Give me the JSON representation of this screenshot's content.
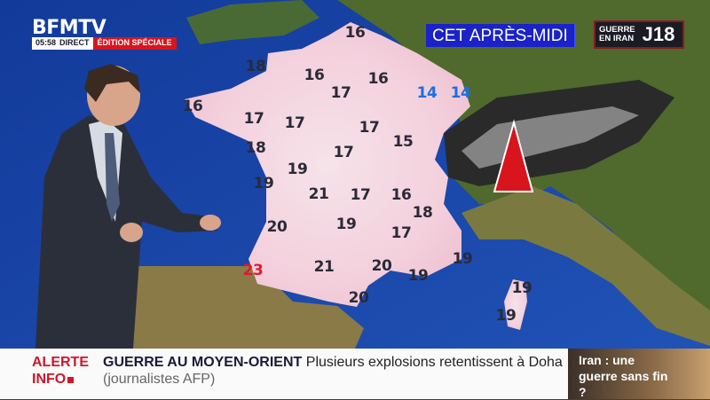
{
  "channel": {
    "logo": "BFMTV",
    "time": "05:58",
    "live": "DIRECT",
    "edition": "ÉDITION SPÉCIALE"
  },
  "weather": {
    "period": "CET APRÈS-MIDI",
    "colors": {
      "default": "#2a2a38",
      "cool": "#1a70e0",
      "hot": "#e01830",
      "land_fr": "#f3d3df",
      "sea": "#1d3f9a"
    },
    "temperatures": [
      {
        "value": "16",
        "tone": "default"
      },
      {
        "value": "18",
        "tone": "default"
      },
      {
        "value": "16",
        "tone": "default"
      },
      {
        "value": "16",
        "tone": "default"
      },
      {
        "value": "17",
        "tone": "default"
      },
      {
        "value": "14",
        "tone": "cool"
      },
      {
        "value": "14",
        "tone": "cool"
      },
      {
        "value": "16",
        "tone": "default"
      },
      {
        "value": "17",
        "tone": "default"
      },
      {
        "value": "17",
        "tone": "default"
      },
      {
        "value": "17",
        "tone": "default"
      },
      {
        "value": "15",
        "tone": "default"
      },
      {
        "value": "18",
        "tone": "default"
      },
      {
        "value": "17",
        "tone": "default"
      },
      {
        "value": "19",
        "tone": "default"
      },
      {
        "value": "19",
        "tone": "default"
      },
      {
        "value": "21",
        "tone": "default"
      },
      {
        "value": "17",
        "tone": "default"
      },
      {
        "value": "16",
        "tone": "default"
      },
      {
        "value": "18",
        "tone": "default"
      },
      {
        "value": "20",
        "tone": "default"
      },
      {
        "value": "19",
        "tone": "default"
      },
      {
        "value": "17",
        "tone": "default"
      },
      {
        "value": "19",
        "tone": "default"
      },
      {
        "value": "23",
        "tone": "hot"
      },
      {
        "value": "21",
        "tone": "default"
      },
      {
        "value": "20",
        "tone": "default"
      },
      {
        "value": "19",
        "tone": "default"
      },
      {
        "value": "19",
        "tone": "default"
      },
      {
        "value": "20",
        "tone": "default"
      },
      {
        "value": "19",
        "tone": "default"
      }
    ],
    "warning_icon": "red-triangle-icon"
  },
  "banner": {
    "line1": "GUERRE",
    "line2": "EN IRAN",
    "day": "J18"
  },
  "ticker": {
    "alert_line1": "ALERTE",
    "alert_line2": "INFO",
    "topic": "GUERRE AU MOYEN-ORIENT",
    "text": "Plusieurs explosions retentissent à Doha",
    "source": "(journalistes AFP)"
  },
  "promo": {
    "text": "Iran : une guerre sans fin ?"
  }
}
